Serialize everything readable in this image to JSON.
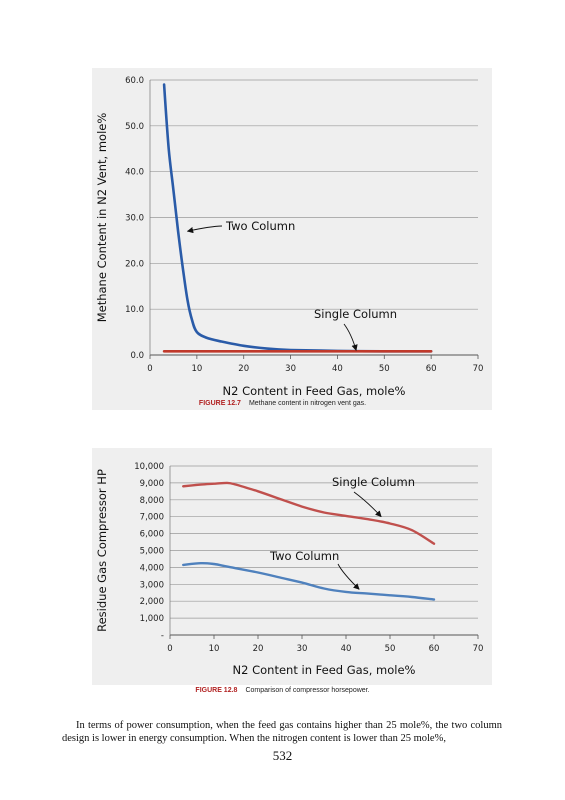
{
  "chart_data": [
    {
      "type": "line",
      "title": "",
      "xlabel": "N2 Content in Feed Gas, mole%",
      "ylabel": "Methane Content in N2 Vent, mole%",
      "xlim": [
        0,
        70
      ],
      "ylim": [
        0,
        60
      ],
      "xticks": [
        0,
        10,
        20,
        30,
        40,
        50,
        60,
        70
      ],
      "yticks": [
        0,
        10,
        20,
        30,
        40,
        50,
        60
      ],
      "xtick_labels": [
        "0",
        "10",
        "20",
        "30",
        "40",
        "50",
        "60",
        "70"
      ],
      "ytick_labels": [
        "0.0",
        "10.0",
        "20.0",
        "30.0",
        "40.0",
        "50.0",
        "60.0"
      ],
      "grid": true,
      "series": [
        {
          "name": "Two Column",
          "color": "#2a5ba8",
          "x": [
            3,
            4,
            5,
            6,
            7,
            8,
            9,
            10,
            12,
            15,
            20,
            25,
            30,
            40,
            50,
            60
          ],
          "y": [
            59,
            45,
            36,
            27,
            19,
            12,
            7.5,
            5,
            3.8,
            3,
            2,
            1.4,
            1.1,
            0.9,
            0.8,
            0.8
          ]
        },
        {
          "name": "Single Column",
          "color": "#c0392b",
          "x": [
            3,
            10,
            20,
            30,
            40,
            50,
            60
          ],
          "y": [
            0.8,
            0.8,
            0.8,
            0.8,
            0.8,
            0.8,
            0.8
          ]
        }
      ],
      "annotations": [
        {
          "text": "Two Column",
          "target": [
            8,
            27
          ]
        },
        {
          "text": "Single Column",
          "target": [
            44,
            1
          ]
        }
      ]
    },
    {
      "type": "line",
      "title": "",
      "xlabel": "N2 Content in Feed Gas, mole%",
      "ylabel": "Residue Gas Compressor HP",
      "xlim": [
        0,
        70
      ],
      "ylim": [
        0,
        10000
      ],
      "xticks": [
        0,
        10,
        20,
        30,
        40,
        50,
        60,
        70
      ],
      "yticks": [
        0,
        1000,
        2000,
        3000,
        4000,
        5000,
        6000,
        7000,
        8000,
        9000,
        10000
      ],
      "xtick_labels": [
        "0",
        "10",
        "20",
        "30",
        "40",
        "50",
        "60",
        "70"
      ],
      "ytick_labels": [
        "-",
        "1,000",
        "2,000",
        "3,000",
        "4,000",
        "5,000",
        "6,000",
        "7,000",
        "8,000",
        "9,000",
        "10,000"
      ],
      "grid": true,
      "series": [
        {
          "name": "Single Column",
          "color": "#c0504d",
          "x": [
            3,
            7,
            10,
            13,
            15,
            20,
            25,
            30,
            35,
            40,
            45,
            50,
            55,
            60
          ],
          "y": [
            8800,
            8900,
            8950,
            9000,
            8900,
            8500,
            8050,
            7600,
            7250,
            7050,
            6850,
            6600,
            6200,
            5400
          ]
        },
        {
          "name": "Two Column",
          "color": "#4f81bd",
          "x": [
            3,
            7,
            10,
            13,
            20,
            25,
            30,
            35,
            40,
            45,
            50,
            55,
            60
          ],
          "y": [
            4150,
            4250,
            4200,
            4050,
            3700,
            3400,
            3100,
            2750,
            2550,
            2450,
            2350,
            2250,
            2100
          ]
        }
      ],
      "annotations": [
        {
          "text": "Single Column",
          "target": [
            48,
            7000
          ]
        },
        {
          "text": "Two Column",
          "target": [
            43,
            2700
          ]
        }
      ]
    }
  ],
  "captions": [
    {
      "number": "FIGURE 12.7",
      "text": "Methane content in nitrogen vent gas."
    },
    {
      "number": "FIGURE 12.8",
      "text": "Comparison of compressor horsepower."
    }
  ],
  "body_text": "In terms of power consumption, when the feed gas contains higher than 25 mole%, the two column design is lower in energy consumption. When the nitrogen content is lower than 25 mole%,",
  "page_number": "532"
}
